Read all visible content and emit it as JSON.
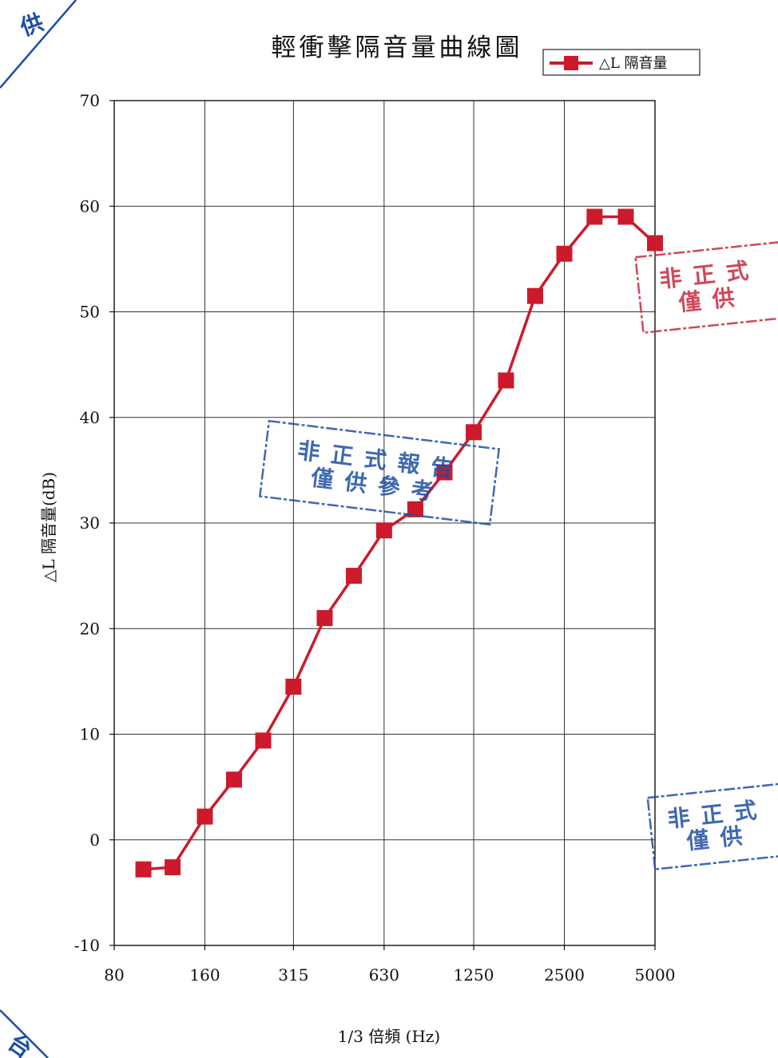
{
  "chart_data": {
    "type": "line",
    "title": "輕衝擊隔音量曲線圖",
    "xlabel": "1/3 倍頻 (Hz)",
    "ylabel": "△L 隔音量(dB)",
    "x_tick_labels": [
      "80",
      "160",
      "315",
      "630",
      "1250",
      "2500",
      "5000"
    ],
    "x_ticks_hz": [
      80,
      160,
      315,
      630,
      1250,
      2500,
      5000
    ],
    "x_scale": "log",
    "ylim": [
      -10,
      70
    ],
    "y_ticks": [
      -10,
      0,
      10,
      20,
      30,
      40,
      50,
      60,
      70
    ],
    "y_tick_labels": [
      "-10",
      "0",
      "10",
      "20",
      "30",
      "40",
      "50",
      "60",
      "70"
    ],
    "grid": true,
    "legend_position": "top-right",
    "series": [
      {
        "name": "△L 隔音量",
        "color": "#cc1a2c",
        "marker": "square",
        "x": [
          100,
          125,
          160,
          200,
          250,
          315,
          400,
          500,
          630,
          800,
          1000,
          1250,
          1600,
          2000,
          2500,
          3150,
          4000,
          5000
        ],
        "values": [
          -2.8,
          -2.6,
          2.2,
          5.7,
          9.4,
          14.5,
          21.0,
          25.0,
          29.3,
          31.3,
          34.8,
          38.6,
          43.5,
          51.5,
          55.5,
          59.0,
          59.0,
          56.5
        ]
      }
    ]
  },
  "stamps": {
    "center": [
      "非正式報告",
      "僅供參考"
    ],
    "right_upper": [
      "非正式",
      "僅供"
    ],
    "right_lower": [
      "非正式",
      "僅供"
    ],
    "corner_top_left": [
      "供"
    ],
    "corner_bottom_left": [
      "台"
    ],
    "colors": {
      "blue": "#1d4fa3",
      "red": "#c8283c"
    }
  }
}
